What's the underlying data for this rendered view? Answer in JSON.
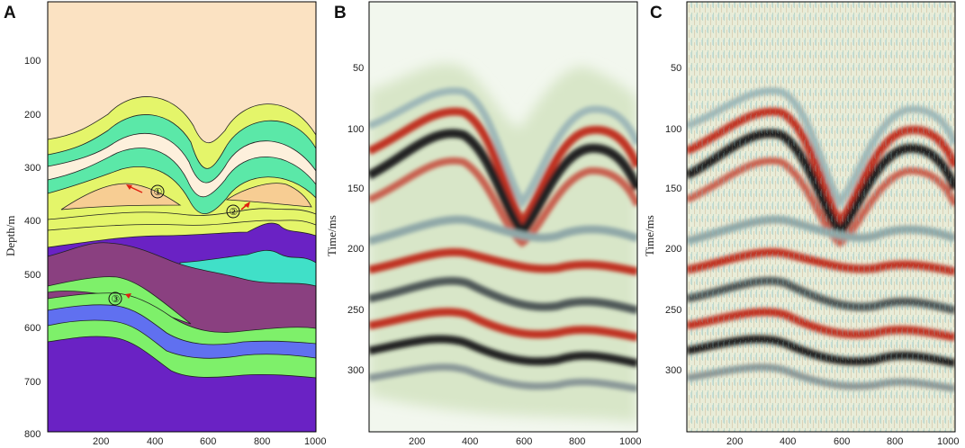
{
  "panels": [
    {
      "label": "A",
      "ylabel": "Depth/m",
      "yticks": [
        "100",
        "200",
        "300",
        "400",
        "500",
        "600",
        "700",
        "800"
      ],
      "xticks": [
        "200",
        "400",
        "600",
        "800",
        "1000"
      ],
      "annotations": [
        "①",
        "②",
        "③"
      ]
    },
    {
      "label": "B",
      "ylabel": "Time/ms",
      "yticks": [
        "50",
        "100",
        "150",
        "200",
        "250",
        "300"
      ],
      "xticks": [
        "200",
        "400",
        "600",
        "800",
        "1000"
      ]
    },
    {
      "label": "C",
      "ylabel": "Time/ms",
      "yticks": [
        "50",
        "100",
        "150",
        "200",
        "250",
        "300"
      ],
      "xticks": [
        "200",
        "400",
        "600",
        "800",
        "1000"
      ]
    }
  ],
  "colors": {
    "sky": "#fbe2c2",
    "yellow": "#e4f56a",
    "teal": "#5be8a8",
    "cream": "#fdf0dc",
    "orange": "#f7cd93",
    "purple": "#6a22c4",
    "cyan": "#40e0c8",
    "plum": "#8a4080",
    "green": "#7ef06a",
    "blue": "#6070f0",
    "red": "#c03020",
    "black": "#202424"
  }
}
